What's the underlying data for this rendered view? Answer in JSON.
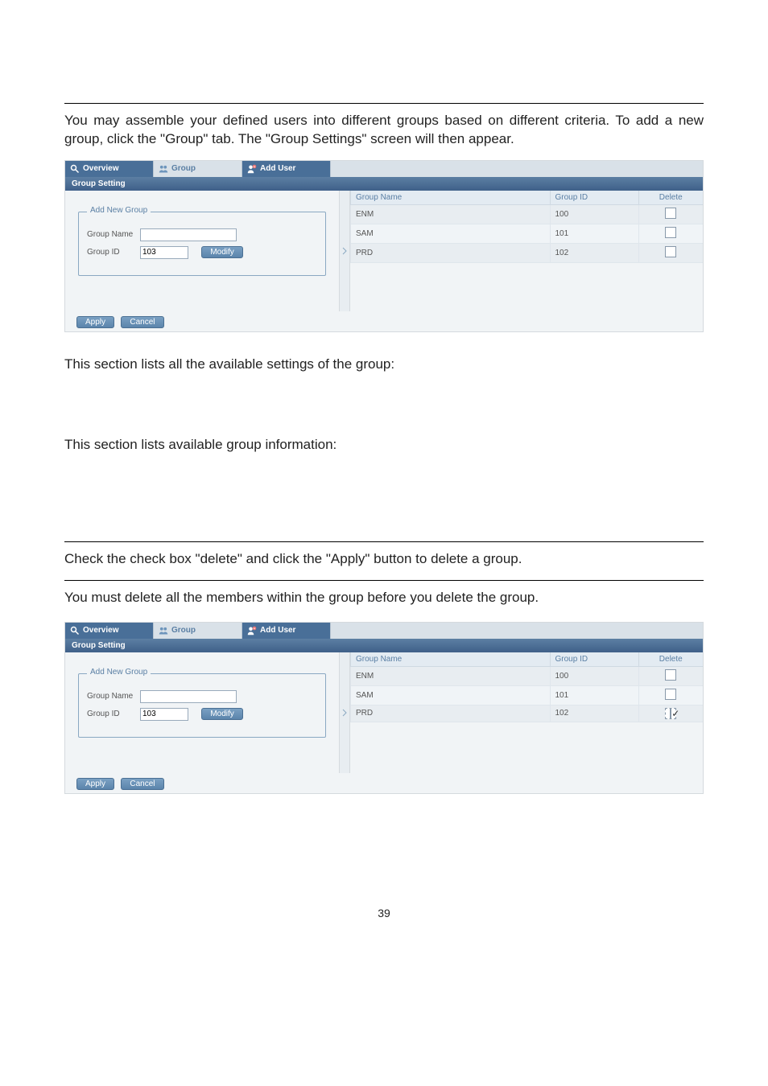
{
  "paragraphs": {
    "intro": "You may assemble your defined users into different groups based on different criteria. To add a new group, click the \"Group\" tab. The \"Group Settings\" screen will then appear.",
    "section1": "This section lists all the available settings of the group:",
    "section2": "This section lists available group information:",
    "delete_instr": "Check the check box \"delete\" and click the \"Apply\" button to delete a group.",
    "delete_note": "You must delete all the members within the group before you delete the group."
  },
  "tabs": {
    "overview": "Overview",
    "group": "Group",
    "adduser": "Add User"
  },
  "section_bar": "Group Setting",
  "fieldset": {
    "legend": "Add New Group",
    "group_name_label": "Group Name",
    "group_id_label": "Group ID",
    "group_id_value": "103",
    "modify": "Modify"
  },
  "buttons": {
    "apply": "Apply",
    "cancel": "Cancel"
  },
  "table_headers": {
    "name": "Group Name",
    "id": "Group ID",
    "delete": "Delete"
  },
  "shot1_rows": [
    {
      "name": "ENM",
      "id": "100",
      "checked": false,
      "dashed": false
    },
    {
      "name": "SAM",
      "id": "101",
      "checked": false,
      "dashed": false
    },
    {
      "name": "PRD",
      "id": "102",
      "checked": false,
      "dashed": false
    }
  ],
  "shot2_rows": [
    {
      "name": "ENM",
      "id": "100",
      "checked": false,
      "dashed": false
    },
    {
      "name": "SAM",
      "id": "101",
      "checked": false,
      "dashed": false
    },
    {
      "name": "PRD",
      "id": "102",
      "checked": true,
      "dashed": true
    }
  ],
  "page_number": "39"
}
